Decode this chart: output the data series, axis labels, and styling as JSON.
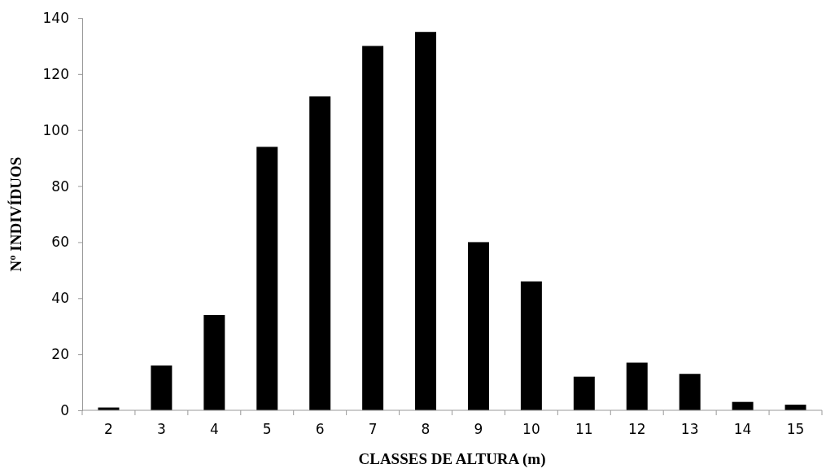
{
  "chart_data": {
    "type": "bar",
    "xlabel": "CLASSES DE ALTURA (m)",
    "ylabel": "Nº INDIVÍDUOS",
    "categories": [
      "2",
      "3",
      "4",
      "5",
      "6",
      "7",
      "8",
      "9",
      "10",
      "11",
      "12",
      "13",
      "14",
      "15"
    ],
    "values": [
      1,
      16,
      34,
      94,
      112,
      130,
      135,
      60,
      46,
      12,
      17,
      13,
      3,
      2
    ],
    "color": "#000000",
    "ylim": [
      0,
      140
    ],
    "yticks": [
      0,
      20,
      40,
      60,
      80,
      100,
      120,
      140
    ],
    "grid": false
  }
}
